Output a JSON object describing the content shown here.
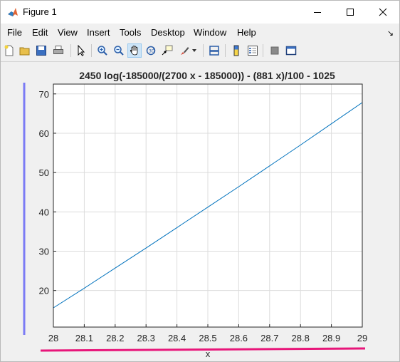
{
  "window": {
    "title": "Figure 1"
  },
  "menu": [
    "File",
    "Edit",
    "View",
    "Insert",
    "Tools",
    "Desktop",
    "Window",
    "Help"
  ],
  "toolbar_icons": [
    "new-figure-icon",
    "open-file-icon",
    "save-icon",
    "print-icon",
    "select-arrow-icon",
    "zoom-in-icon",
    "zoom-out-icon",
    "pan-hand-icon",
    "rotate-3d-icon",
    "data-cursor-icon",
    "brush-icon",
    "link-plot-icon",
    "colorbar-icon",
    "legend-icon",
    "hide-plot-tools-icon",
    "show-plot-tools-icon"
  ],
  "colors": {
    "line": "#0072bd",
    "annotation_left": "#7b7bf5",
    "annotation_bottom": "#e8167a"
  },
  "chart_data": {
    "type": "line",
    "title": "2450 log(-185000/(2700 x - 185000)) - (881 x)/100 - 1025",
    "xlabel": "x",
    "ylabel": "",
    "xlim": [
      28,
      29
    ],
    "ylim": [
      10.7,
      72.5
    ],
    "xticks": [
      "28",
      "28.1",
      "28.2",
      "28.3",
      "28.4",
      "28.5",
      "28.6",
      "28.7",
      "28.8",
      "28.9",
      "29"
    ],
    "yticks": [
      "20",
      "30",
      "40",
      "50",
      "60",
      "70"
    ],
    "grid": true,
    "series": [
      {
        "x": [
          28,
          28.1,
          28.2,
          28.3,
          28.4,
          28.5,
          28.6,
          28.7,
          28.8,
          28.9,
          29
        ],
        "y": [
          15.6,
          20.6,
          25.7,
          30.8,
          36.0,
          41.2,
          46.4,
          51.7,
          57.0,
          62.4,
          67.8
        ]
      }
    ]
  }
}
